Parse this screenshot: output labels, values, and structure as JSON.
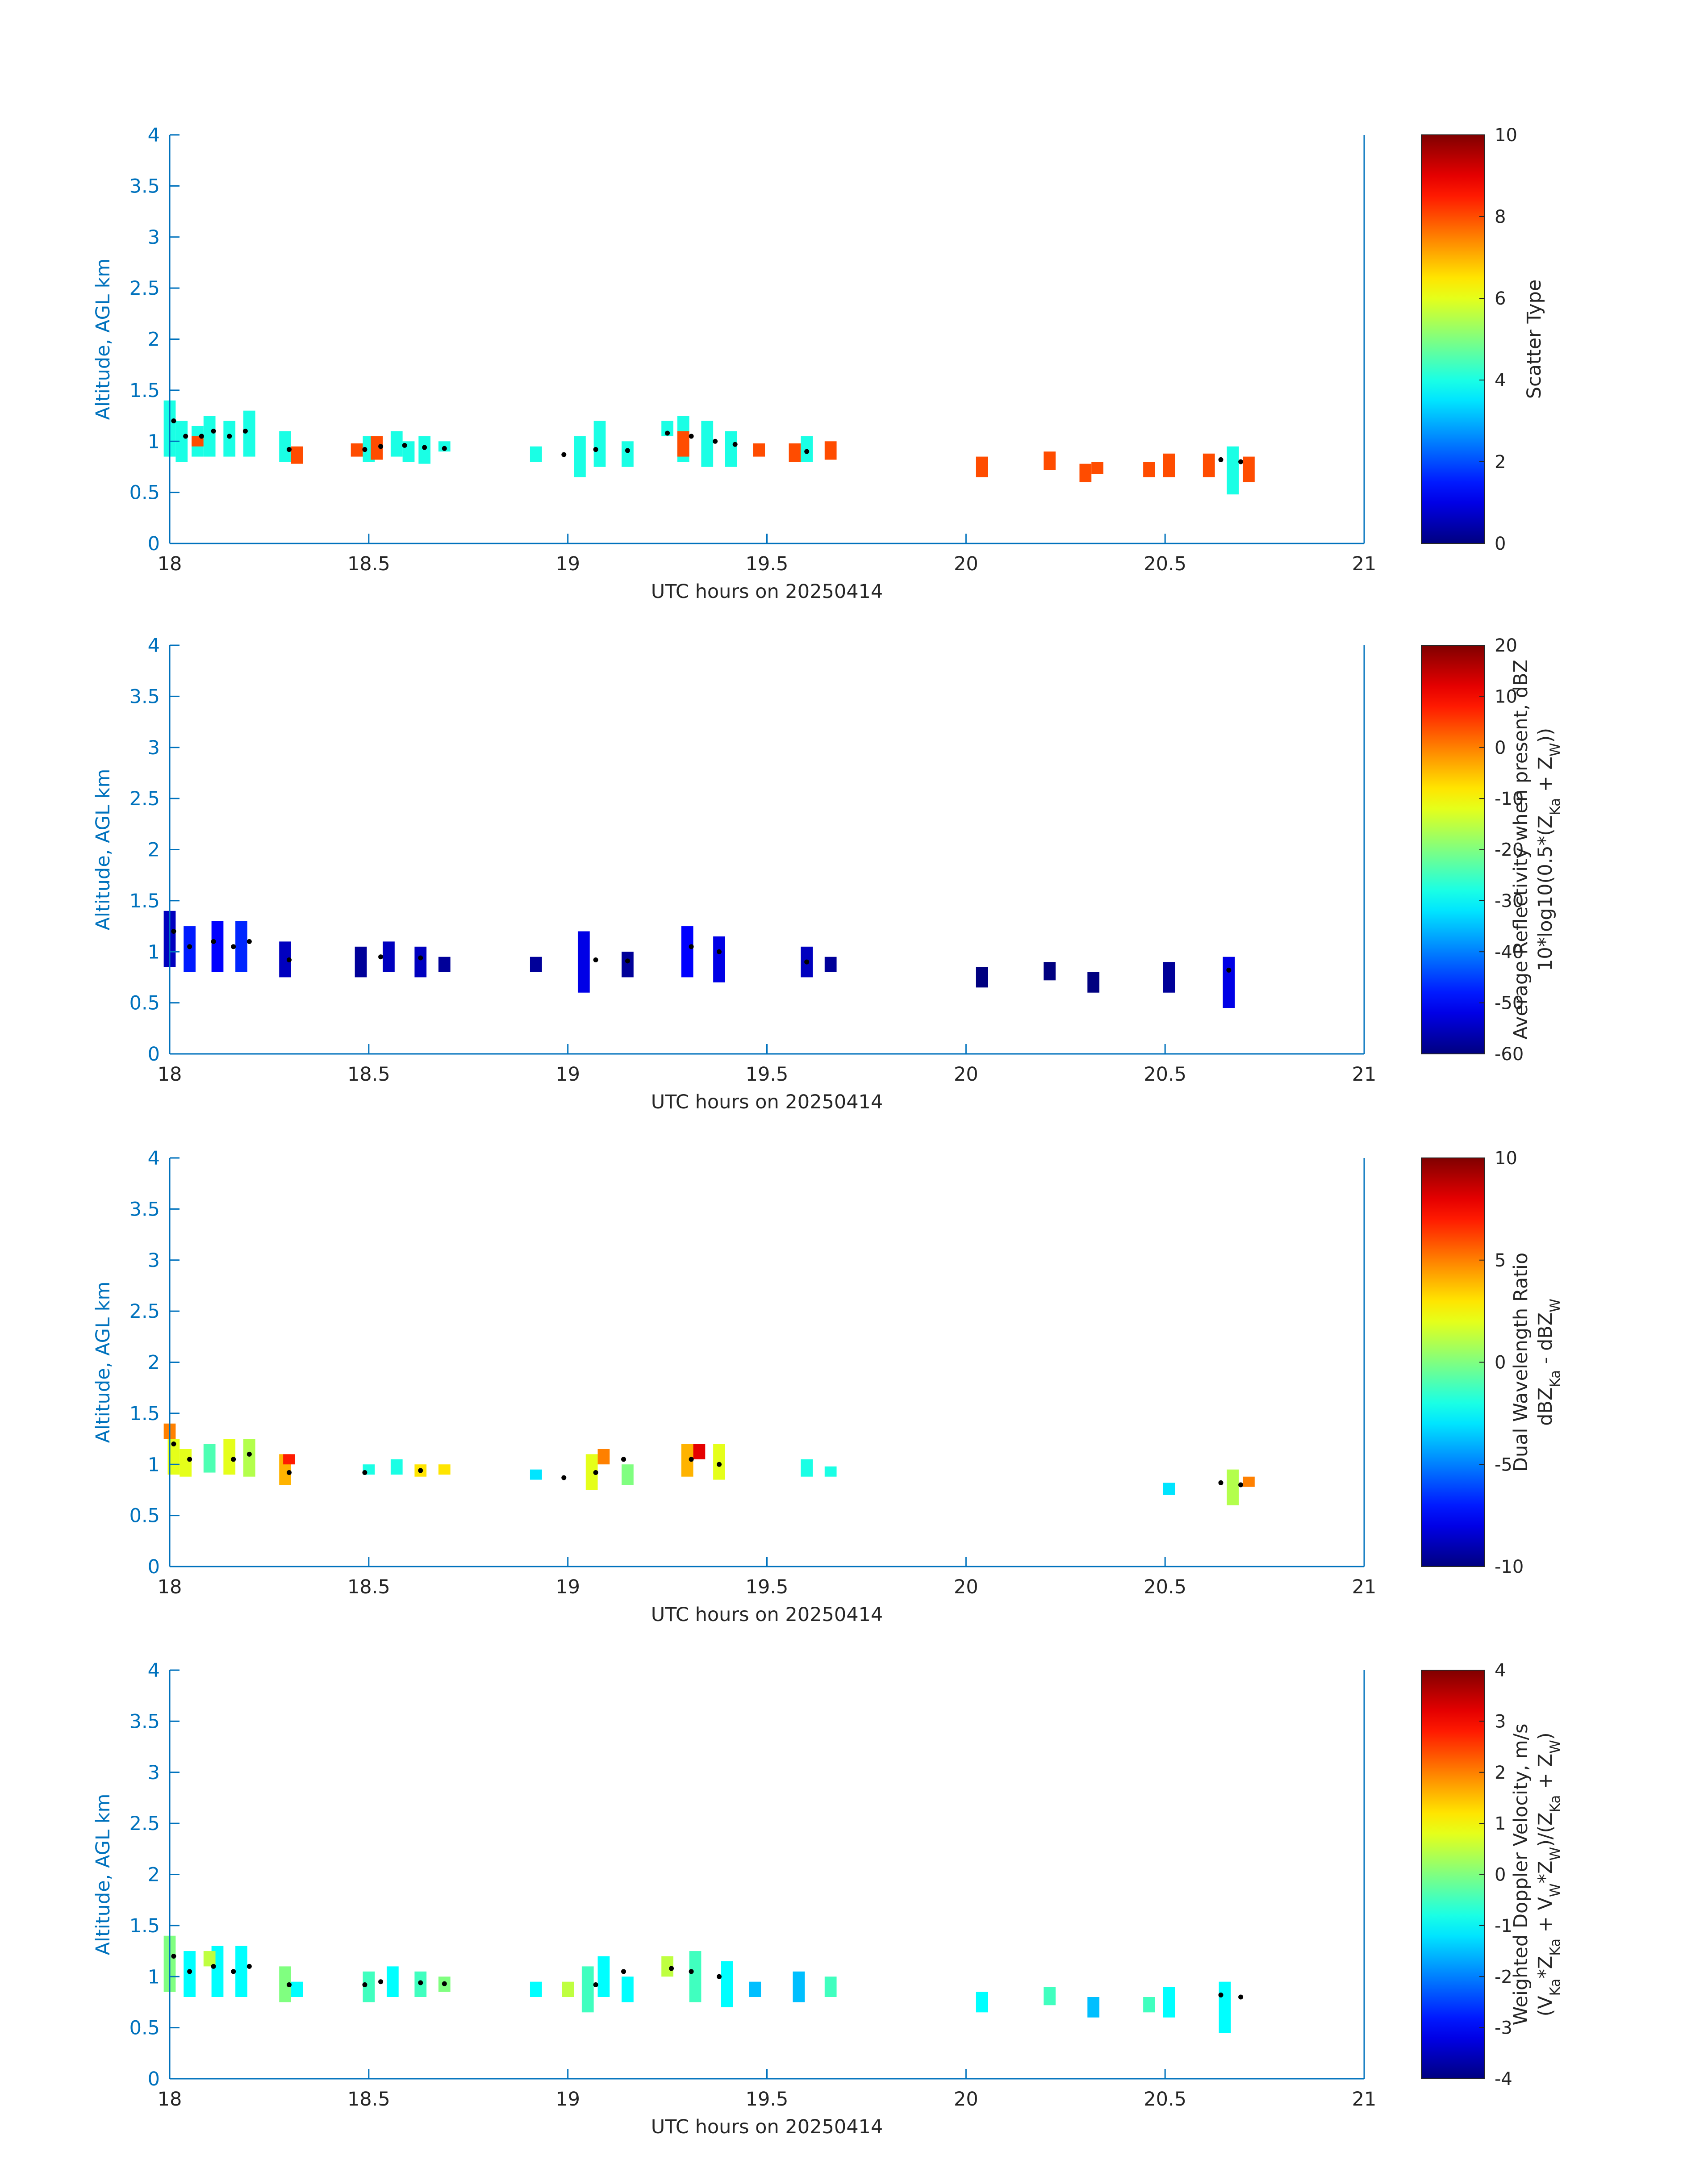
{
  "figure": {
    "colors": {
      "axis": "#0072BD",
      "text": "#262626",
      "marker": "#000000"
    },
    "common_x": {
      "label": "UTC hours on 20250414",
      "ticks": [
        "18",
        "18.5",
        "19",
        "19.5",
        "20",
        "20.5",
        "21"
      ],
      "range": [
        18,
        21
      ]
    },
    "common_y": {
      "label": "Altitude, AGL km",
      "ticks": [
        "0",
        "0.5",
        "1",
        "1.5",
        "2",
        "2.5",
        "3",
        "3.5",
        "4"
      ],
      "range": [
        0,
        4
      ]
    }
  },
  "chart_data": [
    {
      "type": "heatmap",
      "xlabel": "UTC hours on 20250414",
      "ylabel": "Altitude, AGL km",
      "xlim": [
        18,
        21
      ],
      "ylim": [
        0,
        4
      ],
      "colorbar": {
        "label_lines": [
          "Scatter Type"
        ],
        "ticks": [
          "0",
          "2",
          "4",
          "6",
          "8",
          "10"
        ],
        "range": [
          0,
          10
        ],
        "colormap": "jet"
      },
      "cells": [
        [
          18.0,
          0.85,
          1.4,
          4
        ],
        [
          18.03,
          0.8,
          1.2,
          4
        ],
        [
          18.07,
          0.85,
          1.15,
          4
        ],
        [
          18.07,
          0.95,
          1.05,
          8
        ],
        [
          18.1,
          0.85,
          1.25,
          4
        ],
        [
          18.15,
          0.85,
          1.2,
          4
        ],
        [
          18.2,
          0.85,
          1.3,
          4
        ],
        [
          18.29,
          0.8,
          1.1,
          4
        ],
        [
          18.32,
          0.78,
          0.95,
          8
        ],
        [
          18.47,
          0.85,
          0.98,
          8
        ],
        [
          18.5,
          0.8,
          1.05,
          4
        ],
        [
          18.52,
          0.82,
          1.05,
          8
        ],
        [
          18.57,
          0.85,
          1.1,
          4
        ],
        [
          18.6,
          0.8,
          1.0,
          4
        ],
        [
          18.64,
          0.78,
          1.05,
          4
        ],
        [
          18.69,
          0.9,
          1.0,
          4
        ],
        [
          18.92,
          0.8,
          0.95,
          4
        ],
        [
          19.03,
          0.65,
          1.05,
          4
        ],
        [
          19.08,
          0.75,
          1.2,
          4
        ],
        [
          19.15,
          0.75,
          1.0,
          4
        ],
        [
          19.25,
          1.05,
          1.2,
          4
        ],
        [
          19.29,
          0.8,
          1.25,
          4
        ],
        [
          19.29,
          0.85,
          1.1,
          8
        ],
        [
          19.35,
          0.75,
          1.2,
          4
        ],
        [
          19.41,
          0.75,
          1.1,
          4
        ],
        [
          19.48,
          0.85,
          0.98,
          8
        ],
        [
          19.57,
          0.8,
          0.98,
          8
        ],
        [
          19.6,
          0.8,
          1.05,
          4
        ],
        [
          19.66,
          0.82,
          1.0,
          8
        ],
        [
          20.04,
          0.65,
          0.85,
          8
        ],
        [
          20.21,
          0.72,
          0.9,
          8
        ],
        [
          20.3,
          0.6,
          0.78,
          8
        ],
        [
          20.33,
          0.68,
          0.8,
          8
        ],
        [
          20.46,
          0.65,
          0.8,
          8
        ],
        [
          20.51,
          0.65,
          0.88,
          8
        ],
        [
          20.61,
          0.65,
          0.88,
          8
        ],
        [
          20.71,
          0.6,
          0.85,
          8
        ],
        [
          20.67,
          0.48,
          0.95,
          4
        ]
      ],
      "markers": [
        [
          18.01,
          1.2
        ],
        [
          18.04,
          1.05
        ],
        [
          18.08,
          1.05
        ],
        [
          18.11,
          1.1
        ],
        [
          18.15,
          1.05
        ],
        [
          18.19,
          1.1
        ],
        [
          18.3,
          0.92
        ],
        [
          18.49,
          0.92
        ],
        [
          18.53,
          0.95
        ],
        [
          18.59,
          0.96
        ],
        [
          18.64,
          0.94
        ],
        [
          18.69,
          0.93
        ],
        [
          18.99,
          0.87
        ],
        [
          19.07,
          0.92
        ],
        [
          19.15,
          0.91
        ],
        [
          19.25,
          1.08
        ],
        [
          19.31,
          1.05
        ],
        [
          19.37,
          1.0
        ],
        [
          19.42,
          0.97
        ],
        [
          19.6,
          0.9
        ],
        [
          20.64,
          0.82
        ],
        [
          20.69,
          0.8
        ]
      ]
    },
    {
      "type": "heatmap",
      "xlabel": "UTC hours on 20250414",
      "ylabel": "Altitude, AGL km",
      "xlim": [
        18,
        21
      ],
      "ylim": [
        0,
        4
      ],
      "colorbar": {
        "label_lines": [
          "Average Reflectivity when present, dBZ",
          "10*log10(0.5*(Z_Ka + Z_W))"
        ],
        "ticks": [
          "-60",
          "-50",
          "-40",
          "-30",
          "-20",
          "-10",
          "0",
          "10",
          "20"
        ],
        "range": [
          -60,
          20
        ],
        "colormap": "jet"
      },
      "cells": [
        [
          18.0,
          0.85,
          1.4,
          -55
        ],
        [
          18.05,
          0.8,
          1.25,
          -48
        ],
        [
          18.12,
          0.8,
          1.3,
          -50
        ],
        [
          18.18,
          0.8,
          1.3,
          -47
        ],
        [
          18.29,
          0.75,
          1.1,
          -55
        ],
        [
          18.48,
          0.75,
          1.05,
          -58
        ],
        [
          18.55,
          0.8,
          1.1,
          -55
        ],
        [
          18.63,
          0.75,
          1.05,
          -55
        ],
        [
          18.69,
          0.8,
          0.95,
          -58
        ],
        [
          18.92,
          0.8,
          0.95,
          -58
        ],
        [
          19.04,
          0.6,
          1.2,
          -52
        ],
        [
          19.15,
          0.75,
          1.0,
          -58
        ],
        [
          19.3,
          0.75,
          1.25,
          -50
        ],
        [
          19.38,
          0.7,
          1.15,
          -52
        ],
        [
          19.6,
          0.75,
          1.05,
          -55
        ],
        [
          19.66,
          0.8,
          0.95,
          -58
        ],
        [
          20.04,
          0.65,
          0.85,
          -60
        ],
        [
          20.21,
          0.72,
          0.9,
          -60
        ],
        [
          20.32,
          0.6,
          0.8,
          -60
        ],
        [
          20.51,
          0.6,
          0.9,
          -58
        ],
        [
          20.66,
          0.45,
          0.95,
          -52
        ]
      ],
      "markers": [
        [
          18.01,
          1.2
        ],
        [
          18.05,
          1.05
        ],
        [
          18.11,
          1.1
        ],
        [
          18.16,
          1.05
        ],
        [
          18.2,
          1.1
        ],
        [
          18.3,
          0.92
        ],
        [
          18.53,
          0.95
        ],
        [
          18.63,
          0.94
        ],
        [
          19.07,
          0.92
        ],
        [
          19.15,
          0.91
        ],
        [
          19.31,
          1.05
        ],
        [
          19.38,
          1.0
        ],
        [
          19.6,
          0.9
        ],
        [
          20.66,
          0.82
        ]
      ]
    },
    {
      "type": "heatmap",
      "xlabel": "UTC hours on 20250414",
      "ylabel": "Altitude, AGL km",
      "xlim": [
        18,
        21
      ],
      "ylim": [
        0,
        4
      ],
      "colorbar": {
        "label_lines": [
          "Dual Wavelength Ratio",
          "dBZ_Ka - dBZ_W"
        ],
        "ticks": [
          "-10",
          "-5",
          "0",
          "5",
          "10"
        ],
        "range": [
          -10,
          10
        ],
        "colormap": "jet"
      },
      "cells": [
        [
          18.0,
          1.25,
          1.4,
          5
        ],
        [
          18.01,
          0.9,
          1.25,
          2
        ],
        [
          18.04,
          0.88,
          1.15,
          2
        ],
        [
          18.1,
          0.92,
          1.2,
          -1
        ],
        [
          18.15,
          0.9,
          1.25,
          2
        ],
        [
          18.2,
          0.88,
          1.25,
          1
        ],
        [
          18.29,
          0.8,
          1.1,
          4
        ],
        [
          18.3,
          1.0,
          1.1,
          7
        ],
        [
          18.5,
          0.9,
          1.0,
          -2
        ],
        [
          18.57,
          0.9,
          1.05,
          -2
        ],
        [
          18.63,
          0.88,
          1.0,
          3
        ],
        [
          18.69,
          0.9,
          1.0,
          3
        ],
        [
          18.92,
          0.85,
          0.95,
          -3
        ],
        [
          19.06,
          0.75,
          1.1,
          2
        ],
        [
          19.09,
          1.0,
          1.15,
          5
        ],
        [
          19.15,
          0.8,
          1.0,
          0
        ],
        [
          19.3,
          0.88,
          1.2,
          4
        ],
        [
          19.33,
          1.05,
          1.2,
          8
        ],
        [
          19.38,
          0.85,
          1.2,
          2
        ],
        [
          19.6,
          0.88,
          1.05,
          -2
        ],
        [
          19.66,
          0.88,
          0.98,
          -2
        ],
        [
          20.51,
          0.7,
          0.82,
          -3
        ],
        [
          20.67,
          0.6,
          0.95,
          1
        ],
        [
          20.71,
          0.78,
          0.88,
          5
        ]
      ],
      "markers": [
        [
          18.01,
          1.2
        ],
        [
          18.05,
          1.05
        ],
        [
          18.16,
          1.05
        ],
        [
          18.2,
          1.1
        ],
        [
          18.3,
          0.92
        ],
        [
          18.49,
          0.92
        ],
        [
          18.63,
          0.94
        ],
        [
          18.99,
          0.87
        ],
        [
          19.07,
          0.92
        ],
        [
          19.14,
          1.05
        ],
        [
          19.31,
          1.05
        ],
        [
          19.38,
          1.0
        ],
        [
          20.64,
          0.82
        ],
        [
          20.69,
          0.8
        ]
      ]
    },
    {
      "type": "heatmap",
      "xlabel": "UTC hours on 20250414",
      "ylabel": "Altitude, AGL km",
      "xlim": [
        18,
        21
      ],
      "ylim": [
        0,
        4
      ],
      "colorbar": {
        "label_lines": [
          "Weighted Doppler Velocity, m/s",
          "(V_Ka*Z_Ka + V_W*Z_W)/(Z_Ka + Z_W)"
        ],
        "ticks": [
          "-4",
          "-3",
          "-2",
          "-1",
          "0",
          "1",
          "2",
          "3",
          "4"
        ],
        "range": [
          -4,
          4
        ],
        "colormap": "jet"
      },
      "cells": [
        [
          18.0,
          0.85,
          1.4,
          0
        ],
        [
          18.05,
          0.8,
          1.25,
          -1
        ],
        [
          18.12,
          0.8,
          1.3,
          -1
        ],
        [
          18.18,
          0.8,
          1.3,
          -1
        ],
        [
          18.1,
          1.1,
          1.25,
          0.5
        ],
        [
          18.29,
          0.75,
          1.1,
          0
        ],
        [
          18.32,
          0.8,
          0.95,
          -1
        ],
        [
          18.5,
          0.75,
          1.05,
          -0.5
        ],
        [
          18.56,
          0.8,
          1.1,
          -1
        ],
        [
          18.63,
          0.8,
          1.05,
          -0.5
        ],
        [
          18.69,
          0.85,
          1.0,
          0
        ],
        [
          18.92,
          0.8,
          0.95,
          -1
        ],
        [
          19.0,
          0.8,
          0.95,
          0.5
        ],
        [
          19.05,
          0.65,
          1.1,
          -0.5
        ],
        [
          19.09,
          0.8,
          1.2,
          -1
        ],
        [
          19.15,
          0.75,
          1.0,
          -1
        ],
        [
          19.25,
          1.0,
          1.2,
          0.5
        ],
        [
          19.32,
          0.75,
          1.25,
          -0.5
        ],
        [
          19.4,
          0.7,
          1.15,
          -1
        ],
        [
          19.47,
          0.8,
          0.95,
          -1.5
        ],
        [
          19.58,
          0.75,
          1.05,
          -1.5
        ],
        [
          19.66,
          0.8,
          1.0,
          -0.5
        ],
        [
          20.04,
          0.65,
          0.85,
          -1
        ],
        [
          20.21,
          0.72,
          0.9,
          -0.5
        ],
        [
          20.32,
          0.6,
          0.8,
          -1.5
        ],
        [
          20.46,
          0.65,
          0.8,
          -0.5
        ],
        [
          20.51,
          0.6,
          0.9,
          -1
        ],
        [
          20.65,
          0.45,
          0.95,
          -1
        ]
      ],
      "markers": [
        [
          18.01,
          1.2
        ],
        [
          18.05,
          1.05
        ],
        [
          18.11,
          1.1
        ],
        [
          18.16,
          1.05
        ],
        [
          18.2,
          1.1
        ],
        [
          18.3,
          0.92
        ],
        [
          18.49,
          0.92
        ],
        [
          18.53,
          0.95
        ],
        [
          18.63,
          0.94
        ],
        [
          18.69,
          0.93
        ],
        [
          19.07,
          0.92
        ],
        [
          19.14,
          1.05
        ],
        [
          19.26,
          1.08
        ],
        [
          19.31,
          1.05
        ],
        [
          19.38,
          1.0
        ],
        [
          20.64,
          0.82
        ],
        [
          20.69,
          0.8
        ]
      ]
    }
  ]
}
